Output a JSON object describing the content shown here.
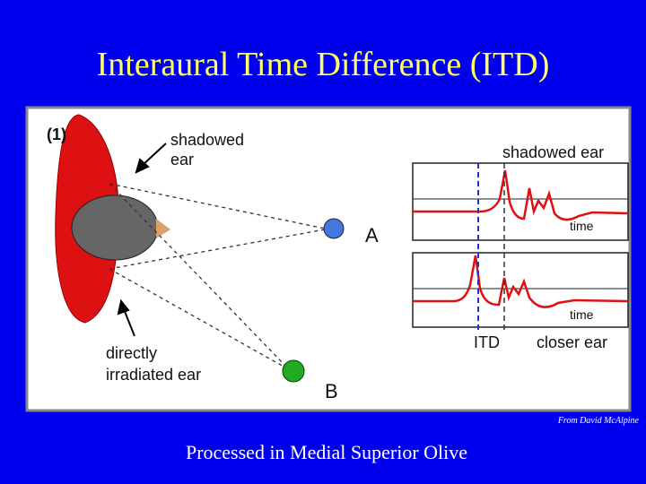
{
  "header": {
    "title": "Interaural Time Difference (ITD)"
  },
  "figure": {
    "panel_label": "(1)",
    "shadowed_ear_label": [
      "shadowed",
      "ear"
    ],
    "source_a": "A",
    "source_b": "B",
    "irradiated_ear_label": [
      "directly",
      "irradiated ear"
    ],
    "upper_trace_label": "shadowed ear",
    "upper_axis_label": "time",
    "lower_axis_label": "time",
    "itd_label": "ITD",
    "lower_trace_label": "closer ear"
  },
  "credit": "From David McAlpine",
  "caption": "Processed in Medial Superior Olive"
}
